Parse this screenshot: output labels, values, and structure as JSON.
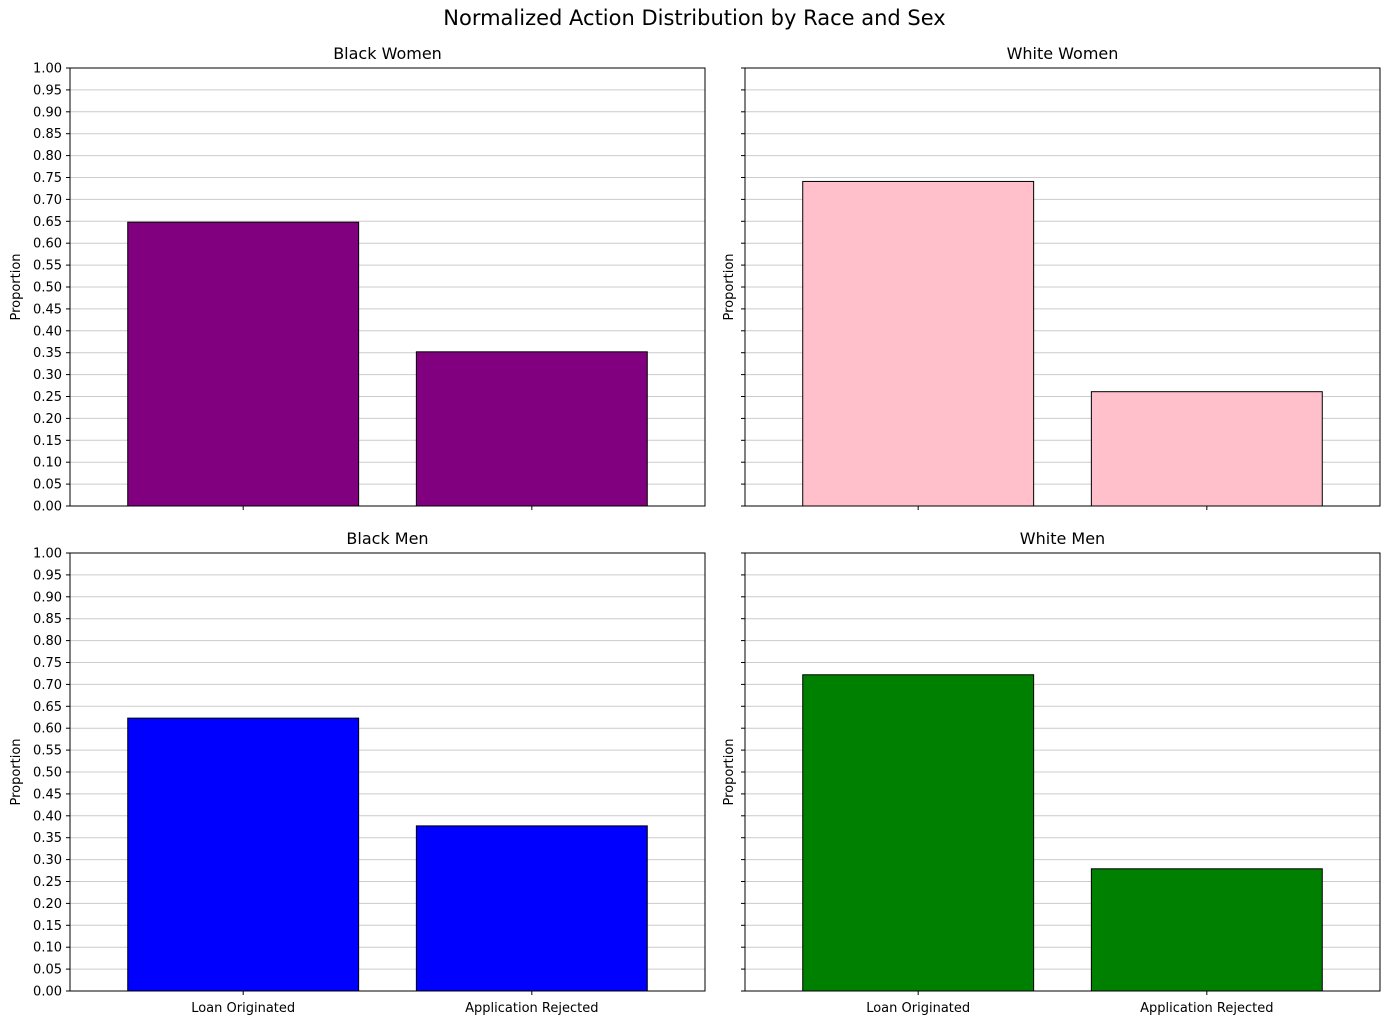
{
  "figure": {
    "title": "Normalized Action Distribution by Race and Sex"
  },
  "chart_data": [
    {
      "type": "bar",
      "title": "Black Women",
      "categories": [
        "Loan Originated",
        "Application Rejected"
      ],
      "values": [
        0.648,
        0.352
      ],
      "ylabel": "Proportion",
      "xlabel": "",
      "ylim": [
        0,
        1
      ],
      "yticks": [
        "0.00",
        "0.05",
        "0.10",
        "0.15",
        "0.20",
        "0.25",
        "0.30",
        "0.35",
        "0.40",
        "0.45",
        "0.50",
        "0.55",
        "0.60",
        "0.65",
        "0.70",
        "0.75",
        "0.80",
        "0.85",
        "0.90",
        "0.95",
        "1.00"
      ],
      "color": "#800080",
      "grid": "y",
      "show_yticklabels": true,
      "show_xticklabels": false
    },
    {
      "type": "bar",
      "title": "White Women",
      "categories": [
        "Loan Originated",
        "Application Rejected"
      ],
      "values": [
        0.741,
        0.261
      ],
      "ylabel": "Proportion",
      "xlabel": "",
      "ylim": [
        0,
        1
      ],
      "yticks": [
        "0.00",
        "0.05",
        "0.10",
        "0.15",
        "0.20",
        "0.25",
        "0.30",
        "0.35",
        "0.40",
        "0.45",
        "0.50",
        "0.55",
        "0.60",
        "0.65",
        "0.70",
        "0.75",
        "0.80",
        "0.85",
        "0.90",
        "0.95",
        "1.00"
      ],
      "color": "#ffc0cb",
      "grid": "y",
      "show_yticklabels": false,
      "show_xticklabels": false
    },
    {
      "type": "bar",
      "title": "Black Men",
      "categories": [
        "Loan Originated",
        "Application Rejected"
      ],
      "values": [
        0.623,
        0.377
      ],
      "ylabel": "Proportion",
      "xlabel": "",
      "ylim": [
        0,
        1
      ],
      "yticks": [
        "0.00",
        "0.05",
        "0.10",
        "0.15",
        "0.20",
        "0.25",
        "0.30",
        "0.35",
        "0.40",
        "0.45",
        "0.50",
        "0.55",
        "0.60",
        "0.65",
        "0.70",
        "0.75",
        "0.80",
        "0.85",
        "0.90",
        "0.95",
        "1.00"
      ],
      "color": "#0000ff",
      "grid": "y",
      "show_yticklabels": true,
      "show_xticklabels": true
    },
    {
      "type": "bar",
      "title": "White Men",
      "categories": [
        "Loan Originated",
        "Application Rejected"
      ],
      "values": [
        0.722,
        0.279
      ],
      "ylabel": "Proportion",
      "xlabel": "",
      "ylim": [
        0,
        1
      ],
      "yticks": [
        "0.00",
        "0.05",
        "0.10",
        "0.15",
        "0.20",
        "0.25",
        "0.30",
        "0.35",
        "0.40",
        "0.45",
        "0.50",
        "0.55",
        "0.60",
        "0.65",
        "0.70",
        "0.75",
        "0.80",
        "0.85",
        "0.90",
        "0.95",
        "1.00"
      ],
      "color": "#008000",
      "grid": "y",
      "show_yticklabels": false,
      "show_xticklabels": true
    }
  ]
}
